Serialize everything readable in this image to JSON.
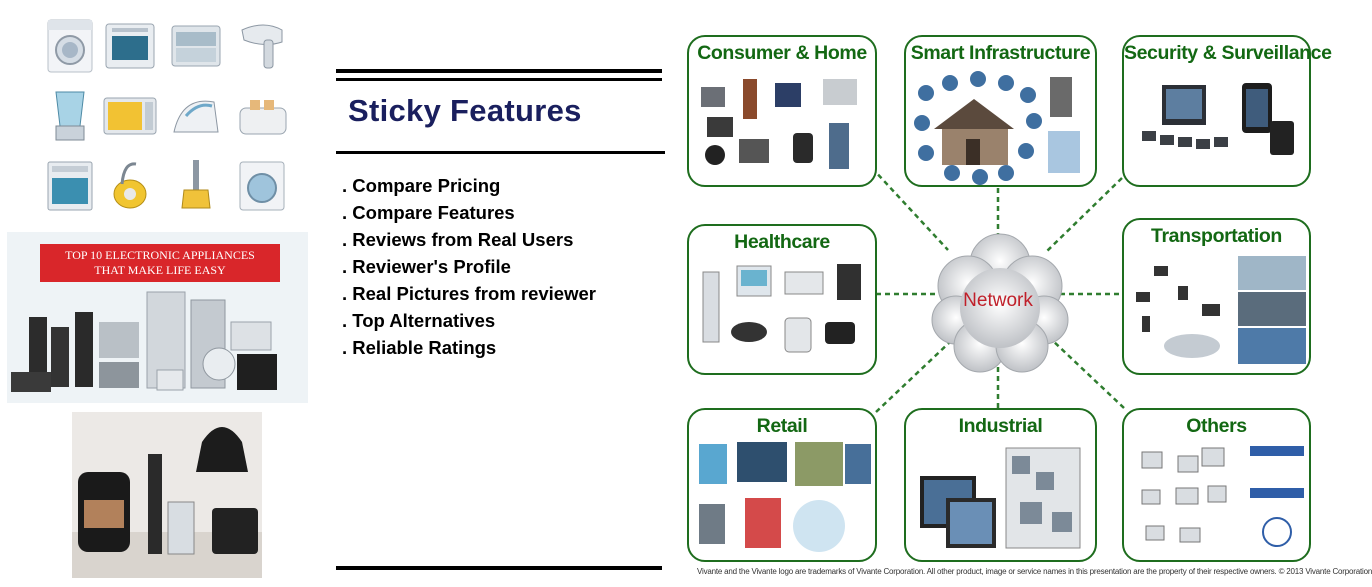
{
  "banner": {
    "title_line1": "TOP 10 ELECTRONIC APPLIANCES",
    "title_line2": "THAT MAKE LIFE EASY"
  },
  "heading": "Sticky Features",
  "features": [
    ". Compare Pricing",
    ". Compare Features",
    ". Reviews from Real Users",
    ". Reviewer's Profile",
    ". Real Pictures from reviewer",
    ". Top Alternatives",
    ". Reliable Ratings"
  ],
  "network": {
    "center_label": "Network",
    "nodes": [
      {
        "label": "Consumer & Home"
      },
      {
        "label": "Smart Infrastructure"
      },
      {
        "label": "Security & Surveillance"
      },
      {
        "label": "Healthcare"
      },
      {
        "label": "Transportation"
      },
      {
        "label": "Retail"
      },
      {
        "label": "Industrial"
      },
      {
        "label": "Others"
      }
    ]
  },
  "footer_note": "Vivante and the Vivante logo are trademarks of Vivante Corporation. All other product, image or service names in this presentation are the property of their respective owners. © 2013 Vivante Corporation",
  "colors": {
    "heading": "#1a1f5e",
    "node_title": "#136813",
    "node_border": "#1e6d1e",
    "network_label": "#c0202a",
    "banner_red": "#d9262a"
  }
}
